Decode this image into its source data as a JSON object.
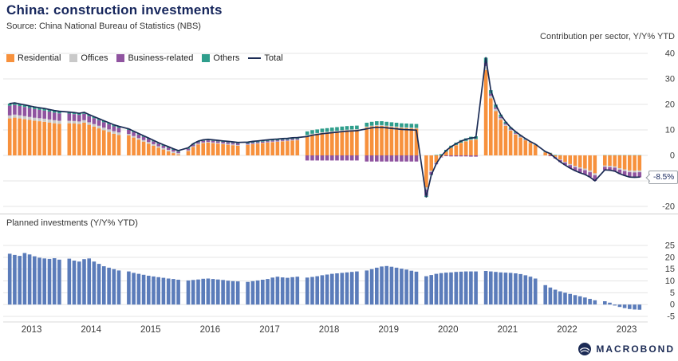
{
  "header": {
    "title": "China: construction investments",
    "source": "Source: China National Bureau of Statistics (NBS)"
  },
  "top_chart": {
    "label": "Contribution per sector, Y/Y% YTD",
    "annotation": "-8.5%",
    "legend": [
      {
        "label": "Residential",
        "color": "#f7913d",
        "swatch": "box"
      },
      {
        "label": "Offices",
        "color": "#c9c9c9",
        "swatch": "box"
      },
      {
        "label": "Business-related",
        "color": "#9054a0",
        "swatch": "box"
      },
      {
        "label": "Others",
        "color": "#2f9e8c",
        "swatch": "box"
      },
      {
        "label": "Total",
        "color": "#1c2c55",
        "swatch": "line"
      }
    ]
  },
  "bottom_chart": {
    "label": "Planned investments (Y/Y% YTD)"
  },
  "footer": {
    "brand": "MACROBOND"
  },
  "chart_data": [
    {
      "type": "bar",
      "stacked": true,
      "title": "Contribution per sector, Y/Y% YTD",
      "ylim": [
        -20,
        40
      ],
      "yticks": [
        40,
        30,
        20,
        10,
        0,
        -10,
        -20
      ],
      "grid": "horizontal",
      "legend_position": "top-left",
      "years": [
        2013,
        2014,
        2015,
        2016,
        2017,
        2018,
        2019,
        2020,
        2021,
        2022,
        2023
      ],
      "points_per_year": [
        11,
        11,
        11,
        11,
        11,
        11,
        11,
        11,
        11,
        11,
        8
      ],
      "last_value_label": "-8.5%",
      "series": [
        {
          "name": "Residential",
          "color": "#f7913d",
          "values": [
            14.5,
            14.8,
            14.5,
            14.2,
            13.9,
            13.6,
            13.4,
            13.2,
            12.9,
            12.6,
            12.4,
            12.6,
            12.5,
            12.3,
            12.8,
            12.0,
            11.3,
            10.6,
            9.9,
            9.2,
            8.5,
            8.0,
            7.8,
            7.0,
            6.2,
            5.4,
            4.6,
            3.8,
            3.0,
            2.3,
            1.6,
            0.9,
            0.3,
            1.7,
            3.3,
            4.3,
            4.8,
            5.0,
            4.8,
            4.6,
            4.4,
            4.2,
            4.0,
            3.8,
            4.1,
            4.4,
            4.6,
            4.8,
            5.0,
            5.2,
            5.3,
            5.5,
            5.6,
            5.8,
            5.9,
            7.7,
            8.2,
            8.5,
            8.8,
            9.0,
            9.2,
            9.4,
            9.6,
            9.8,
            9.9,
            10.0,
            11.0,
            11.4,
            11.6,
            11.6,
            11.4,
            11.2,
            11.0,
            10.8,
            10.7,
            10.6,
            10.5,
            -12.5,
            -6.0,
            -2.8,
            -0.5,
            1.5,
            2.9,
            4.0,
            4.9,
            5.5,
            6.0,
            6.2,
            33.5,
            22.4,
            17.4,
            14.0,
            11.6,
            9.7,
            8.2,
            7.0,
            5.9,
            4.9,
            4.1,
            1.2,
            0.8,
            -0.6,
            -1.6,
            -2.5,
            -3.4,
            -4.1,
            -4.7,
            -5.2,
            -5.9,
            -7.0,
            -4.0,
            -4.1,
            -4.3,
            -5.0,
            -5.5,
            -5.9,
            -6.0,
            -5.9
          ]
        },
        {
          "name": "Offices",
          "color": "#c9c9c9",
          "values": [
            1.2,
            1.2,
            1.2,
            1.2,
            1.2,
            1.2,
            1.2,
            1.2,
            1.2,
            1.2,
            1.2,
            1.0,
            1.0,
            1.0,
            1.0,
            1.0,
            1.0,
            1.0,
            1.0,
            1.0,
            1.0,
            1.0,
            0.6,
            0.6,
            0.6,
            0.6,
            0.6,
            0.6,
            0.6,
            0.6,
            0.6,
            0.6,
            0.6,
            0.3,
            0.3,
            0.3,
            0.3,
            0.3,
            0.3,
            0.3,
            0.3,
            0.3,
            0.3,
            0.3,
            0.2,
            0.2,
            0.2,
            0.2,
            0.2,
            0.2,
            0.2,
            0.2,
            0.2,
            0.2,
            0.2,
            0.3,
            0.3,
            0.3,
            0.3,
            0.3,
            0.3,
            0.3,
            0.3,
            0.3,
            0.3,
            0.3,
            0.3,
            0.3,
            0.3,
            0.3,
            0.3,
            0.3,
            0.3,
            0.3,
            0.3,
            0.3,
            0.3,
            -0.9,
            -0.5,
            -0.3,
            -0.1,
            0.0,
            0.1,
            0.1,
            0.1,
            0.2,
            0.2,
            0.2,
            1.5,
            1.0,
            0.8,
            0.6,
            0.5,
            0.4,
            0.3,
            0.3,
            0.2,
            0.2,
            0.1,
            0.1,
            0.0,
            -0.1,
            -0.2,
            -0.3,
            -0.4,
            -0.5,
            -0.5,
            -0.6,
            -0.7,
            -0.8,
            -0.5,
            -0.5,
            -0.5,
            -0.6,
            -0.7,
            -0.7,
            -0.7,
            -0.7
          ]
        },
        {
          "name": "Business-related",
          "color": "#9054a0",
          "values": [
            3.8,
            3.8,
            3.7,
            3.6,
            3.5,
            3.4,
            3.3,
            3.2,
            3.1,
            3.0,
            2.9,
            2.8,
            2.7,
            2.6,
            2.5,
            2.4,
            2.3,
            2.2,
            2.1,
            2.0,
            1.9,
            1.8,
            1.6,
            1.5,
            1.4,
            1.3,
            1.2,
            1.1,
            1.0,
            0.9,
            0.8,
            0.7,
            0.6,
            0.6,
            0.6,
            0.6,
            0.6,
            0.6,
            0.6,
            0.6,
            0.6,
            0.6,
            0.6,
            0.6,
            0.4,
            0.4,
            0.4,
            0.4,
            0.4,
            0.4,
            0.4,
            0.4,
            0.4,
            0.4,
            0.4,
            -2.0,
            -2.0,
            -2.0,
            -2.0,
            -2.0,
            -2.0,
            -2.0,
            -2.0,
            -2.0,
            -2.0,
            -2.0,
            -2.4,
            -2.4,
            -2.4,
            -2.4,
            -2.4,
            -2.4,
            -2.4,
            -2.4,
            -2.4,
            -2.4,
            -2.4,
            -2.4,
            -1.0,
            -0.4,
            -0.2,
            -0.3,
            -0.4,
            -0.4,
            -0.4,
            -0.4,
            -0.5,
            -0.5,
            1.3,
            0.8,
            0.6,
            0.5,
            0.4,
            0.3,
            0.3,
            0.2,
            0.2,
            0.1,
            0.0,
            0.0,
            -0.3,
            -0.5,
            -0.8,
            -1.0,
            -1.2,
            -1.4,
            -1.6,
            -1.7,
            -1.9,
            -2.2,
            -1.3,
            -1.3,
            -1.5,
            -1.7,
            -1.8,
            -2.0,
            -2.0,
            -2.0
          ]
        },
        {
          "name": "Others",
          "color": "#2f9e8c",
          "values": [
            0.8,
            0.8,
            0.8,
            0.8,
            0.8,
            0.8,
            0.8,
            0.8,
            0.8,
            0.8,
            0.8,
            0.6,
            0.6,
            0.6,
            0.6,
            0.6,
            0.6,
            0.6,
            0.6,
            0.6,
            0.6,
            0.6,
            0.4,
            0.4,
            0.4,
            0.4,
            0.4,
            0.4,
            0.4,
            0.4,
            0.4,
            0.4,
            0.4,
            0.4,
            0.4,
            0.4,
            0.4,
            0.4,
            0.4,
            0.4,
            0.4,
            0.4,
            0.4,
            0.4,
            0.5,
            0.5,
            0.5,
            0.5,
            0.5,
            0.5,
            0.5,
            0.5,
            0.5,
            0.5,
            0.5,
            1.4,
            1.4,
            1.4,
            1.4,
            1.4,
            1.4,
            1.4,
            1.4,
            1.4,
            1.4,
            1.4,
            1.5,
            1.5,
            1.5,
            1.5,
            1.5,
            1.5,
            1.5,
            1.5,
            1.5,
            1.5,
            1.5,
            -0.5,
            -0.2,
            0.2,
            0.5,
            0.7,
            0.8,
            0.9,
            1.0,
            1.0,
            1.1,
            1.1,
            2.0,
            1.4,
            1.1,
            0.9,
            0.7,
            0.6,
            0.5,
            0.4,
            0.3,
            0.2,
            0.2,
            0.2,
            0.2,
            0.2,
            0.1,
            0.0,
            0.0,
            0.0,
            0.0,
            0.0,
            0.0,
            0.0,
            0.1,
            0.1,
            0.1,
            0.1,
            0.1,
            0.1,
            0.1,
            0.1
          ]
        }
      ],
      "line": {
        "name": "Total",
        "color": "#1c2c55",
        "values": [
          20.3,
          20.6,
          20.2,
          19.8,
          19.4,
          19.0,
          18.7,
          18.4,
          18.0,
          17.6,
          17.3,
          17.0,
          16.8,
          16.5,
          16.9,
          16.0,
          15.2,
          14.4,
          13.6,
          12.8,
          12.0,
          11.4,
          10.4,
          9.5,
          8.6,
          7.7,
          6.8,
          5.9,
          5.0,
          4.2,
          3.4,
          2.6,
          1.9,
          3.0,
          4.6,
          5.6,
          6.1,
          6.3,
          6.1,
          5.9,
          5.7,
          5.5,
          5.3,
          5.1,
          5.2,
          5.5,
          5.7,
          5.9,
          6.1,
          6.3,
          6.4,
          6.6,
          6.7,
          6.9,
          7.0,
          7.4,
          7.9,
          8.2,
          8.5,
          8.7,
          8.9,
          9.1,
          9.3,
          9.5,
          9.6,
          9.7,
          10.4,
          10.8,
          11.0,
          11.0,
          10.8,
          10.6,
          10.4,
          10.2,
          10.1,
          10.0,
          9.9,
          -16.3,
          -7.7,
          -3.3,
          -0.3,
          1.9,
          3.4,
          4.6,
          5.6,
          6.3,
          6.8,
          7.0,
          38.3,
          25.6,
          19.9,
          16.0,
          13.2,
          11.0,
          9.3,
          7.9,
          6.6,
          5.4,
          4.4,
          1.5,
          0.7,
          -1.0,
          -2.5,
          -3.8,
          -5.0,
          -6.0,
          -6.8,
          -7.5,
          -8.5,
          -10.0,
          -5.7,
          -5.8,
          -6.2,
          -7.2,
          -7.9,
          -8.5,
          -8.6,
          -8.5
        ]
      }
    },
    {
      "type": "bar",
      "title": "Planned investments (Y/Y% YTD)",
      "ylim": [
        -5,
        25
      ],
      "yticks": [
        25,
        20,
        15,
        10,
        5,
        0,
        -5
      ],
      "grid": "horizontal",
      "color": "#5b7cba",
      "years": [
        2013,
        2014,
        2015,
        2016,
        2017,
        2018,
        2019,
        2020,
        2021,
        2022,
        2023
      ],
      "points_per_year": [
        11,
        11,
        11,
        11,
        11,
        11,
        11,
        11,
        11,
        11,
        8
      ],
      "xticks": [
        2013,
        2014,
        2015,
        2016,
        2017,
        2018,
        2019,
        2020,
        2021,
        2022,
        2023
      ],
      "values": [
        21.5,
        21.0,
        20.6,
        21.8,
        21.2,
        20.4,
        19.8,
        19.5,
        19.3,
        19.6,
        19.0,
        19.4,
        18.6,
        18.2,
        19.2,
        19.5,
        18.2,
        17.2,
        16.2,
        15.6,
        15.0,
        14.4,
        14.0,
        13.4,
        13.0,
        12.6,
        12.2,
        11.9,
        11.6,
        11.3,
        11.0,
        10.8,
        10.5,
        10.2,
        10.4,
        10.6,
        10.9,
        11.0,
        10.8,
        10.6,
        10.4,
        10.1,
        9.9,
        9.8,
        9.6,
        9.9,
        10.2,
        10.5,
        10.8,
        11.4,
        11.8,
        11.5,
        11.3,
        11.6,
        11.8,
        11.4,
        11.7,
        12.0,
        12.4,
        12.7,
        13.0,
        13.2,
        13.4,
        13.6,
        13.8,
        14.0,
        14.4,
        15.0,
        15.6,
        16.1,
        16.3,
        16.0,
        15.6,
        15.2,
        14.8,
        14.3,
        13.9,
        12.0,
        12.5,
        13.0,
        13.3,
        13.5,
        13.6,
        13.8,
        13.9,
        14.0,
        14.0,
        14.0,
        14.2,
        14.0,
        13.8,
        13.6,
        13.5,
        13.4,
        13.2,
        12.9,
        12.4,
        11.8,
        11.0,
        8.2,
        7.2,
        6.3,
        5.6,
        5.0,
        4.5,
        4.0,
        3.5,
        3.0,
        2.4,
        1.8,
        1.4,
        0.8,
        -0.4,
        -1.0,
        -1.5,
        -1.9,
        -2.1,
        -2.2
      ]
    }
  ]
}
